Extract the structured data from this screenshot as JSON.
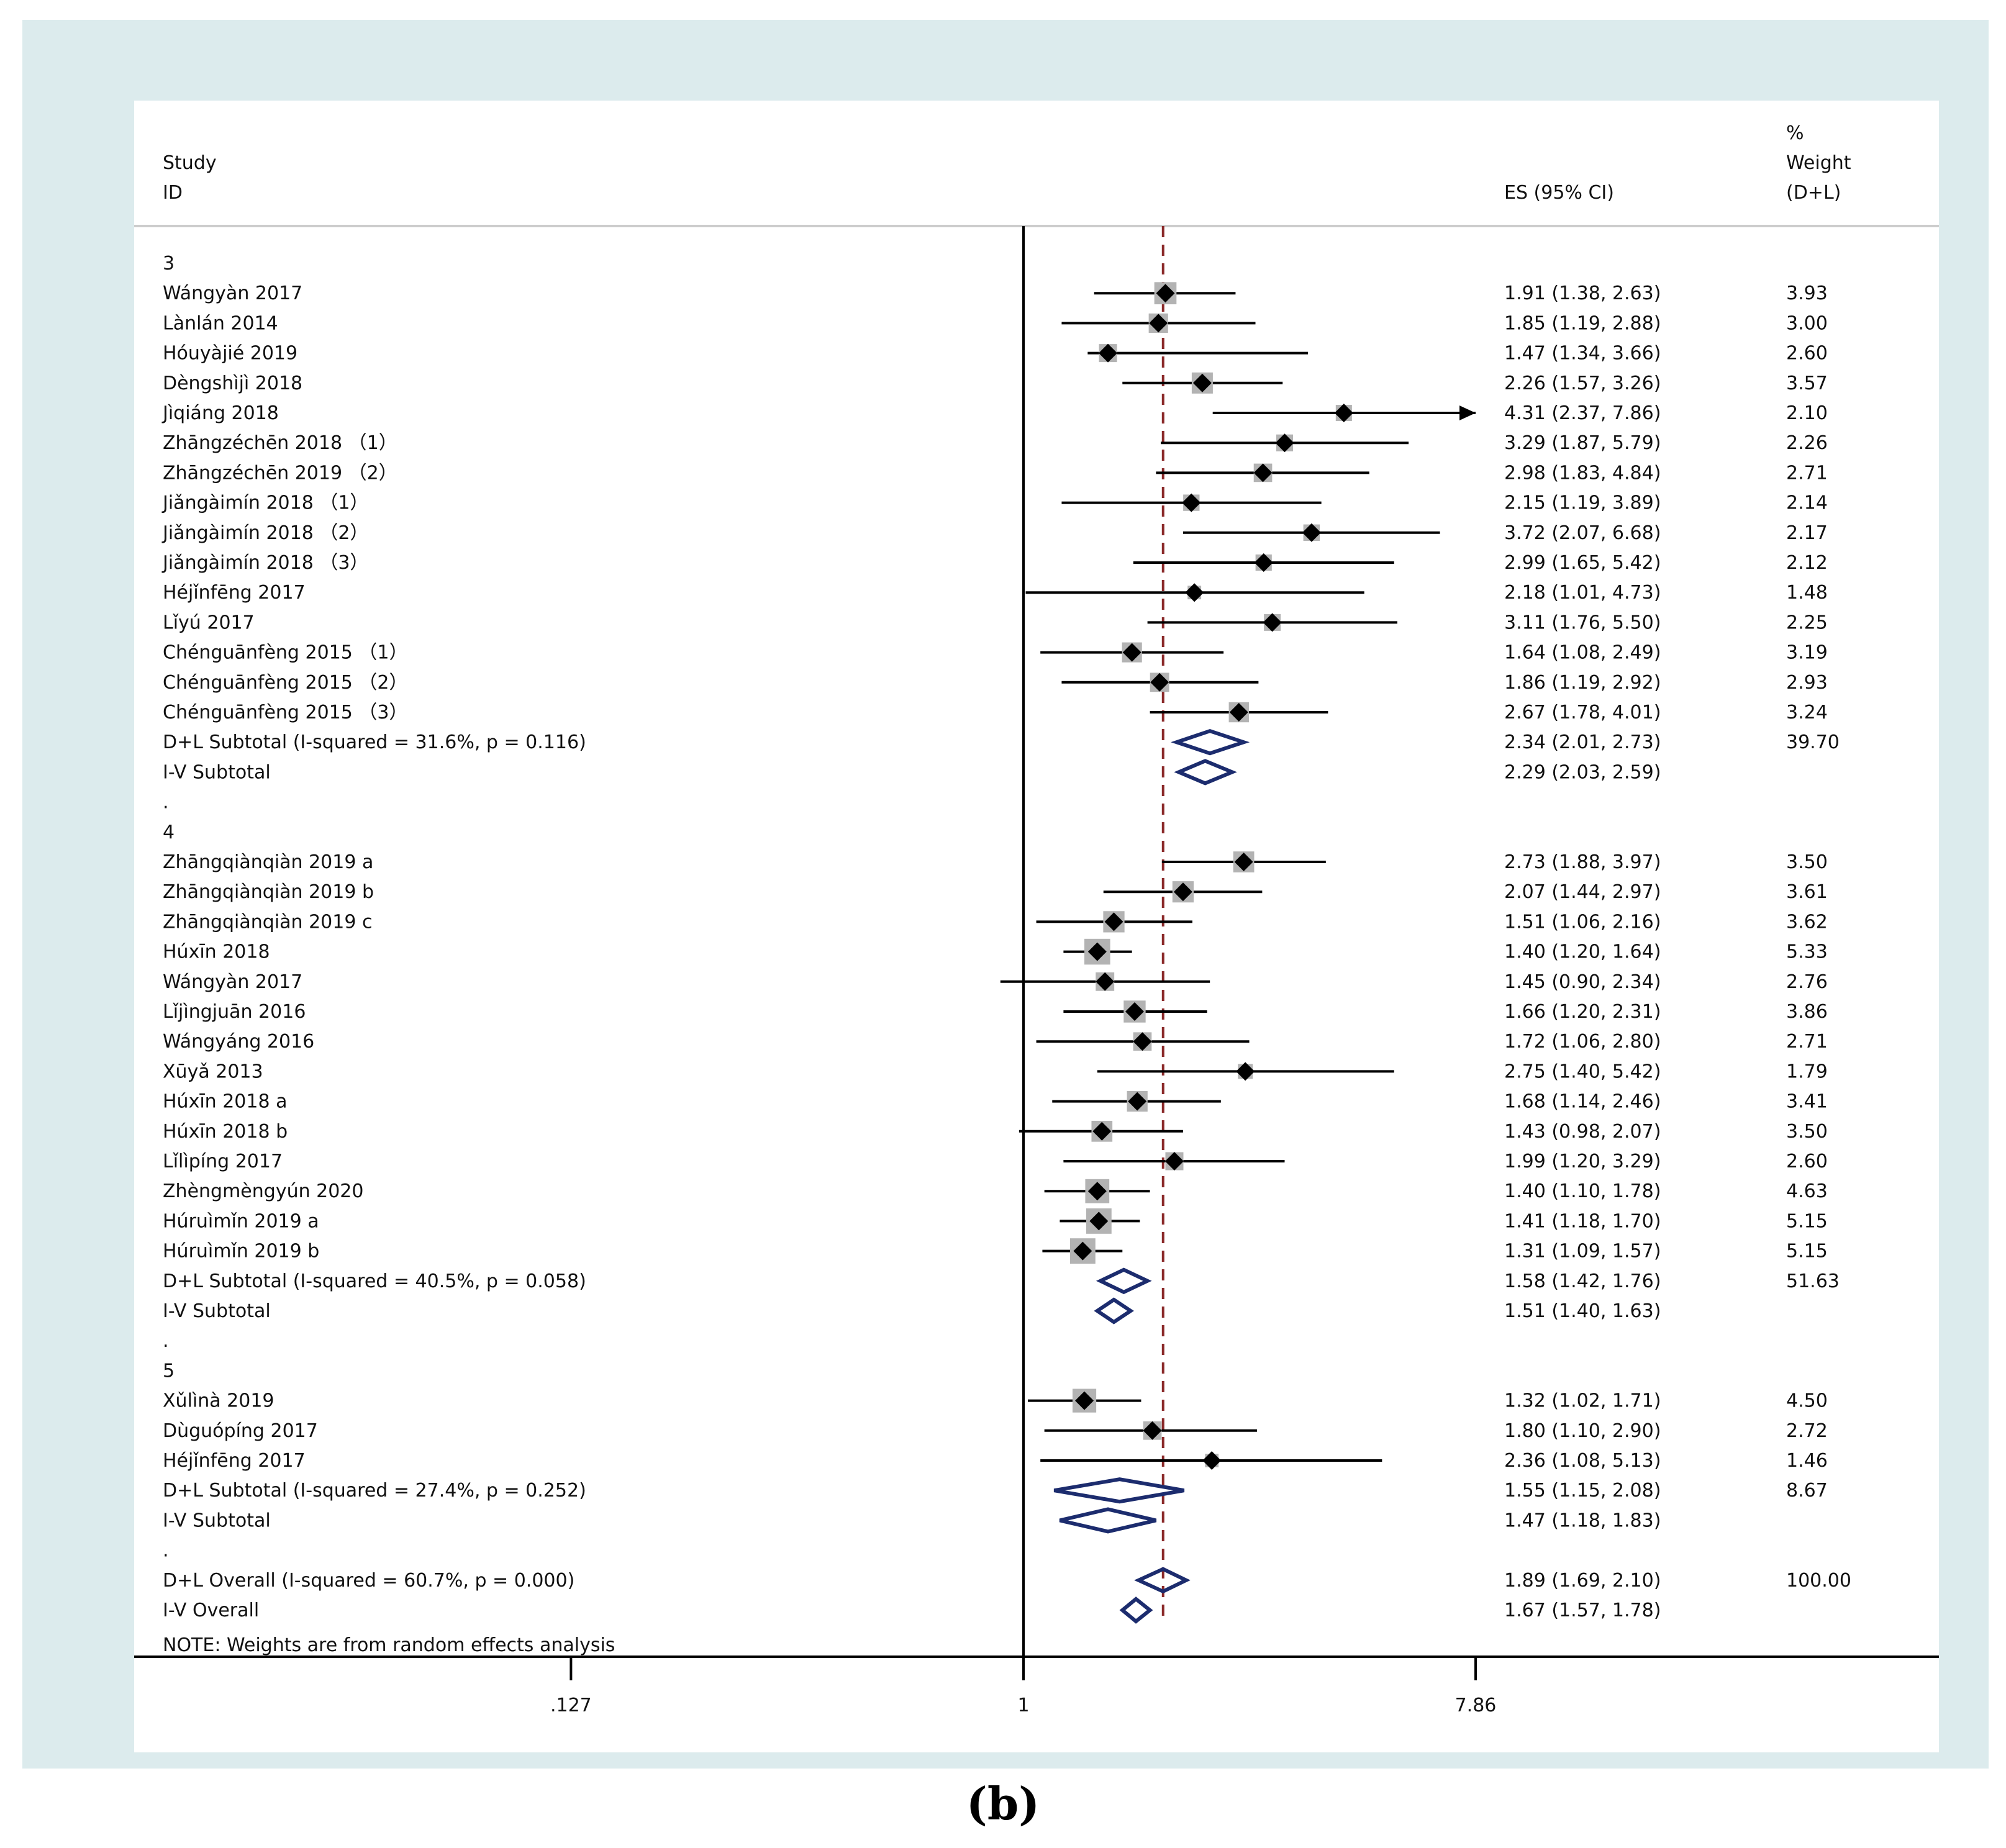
{
  "chart_data": {
    "type": "forest",
    "title": "",
    "headers": {
      "study": "Study",
      "id": "ID",
      "es": "ES (95% CI)",
      "weight_pct": "%",
      "weight": "Weight",
      "weight_method": "(D+L)"
    },
    "xaxis": {
      "scale": "log",
      "ticks": [
        0.127,
        1,
        7.86
      ],
      "tick_labels": [
        ".127",
        "1",
        "7.86"
      ],
      "null_value": 1,
      "overall_dashed_line": 1.89
    },
    "rows": [
      {
        "kind": "group",
        "label": "3"
      },
      {
        "kind": "study",
        "label": "Wángyàn 2017",
        "es": 1.91,
        "lo": 1.38,
        "hi": 2.63,
        "text": "1.91 (1.38, 2.63)",
        "weight": "3.93"
      },
      {
        "kind": "study",
        "label": "Lànlán 2014",
        "es": 1.85,
        "lo": 1.19,
        "hi": 2.88,
        "text": "1.85 (1.19, 2.88)",
        "weight": "3.00"
      },
      {
        "kind": "study",
        "label": "Hóuyàjié 2019",
        "es": 1.47,
        "lo": 1.34,
        "hi": 3.66,
        "text": "1.47 (1.34, 3.66)",
        "weight": "2.60"
      },
      {
        "kind": "study",
        "label": "Dèngshìjì 2018",
        "es": 2.26,
        "lo": 1.57,
        "hi": 3.26,
        "text": "2.26 (1.57, 3.26)",
        "weight": "3.57"
      },
      {
        "kind": "study",
        "label": "Jìqiáng 2018",
        "es": 4.31,
        "lo": 2.37,
        "hi": 7.86,
        "arrow": true,
        "text": "4.31 (2.37, 7.86)",
        "weight": "2.10"
      },
      {
        "kind": "study",
        "label": "Zhāngzéchēn 2018 （1）",
        "es": 3.29,
        "lo": 1.87,
        "hi": 5.79,
        "text": "3.29 (1.87, 5.79)",
        "weight": "2.26"
      },
      {
        "kind": "study",
        "label": "Zhāngzéchēn 2019 （2）",
        "es": 2.98,
        "lo": 1.83,
        "hi": 4.84,
        "text": "2.98 (1.83, 4.84)",
        "weight": "2.71"
      },
      {
        "kind": "study",
        "label": "Jiǎngàimín 2018 （1）",
        "es": 2.15,
        "lo": 1.19,
        "hi": 3.89,
        "text": "2.15 (1.19, 3.89)",
        "weight": "2.14"
      },
      {
        "kind": "study",
        "label": "Jiǎngàimín 2018 （2）",
        "es": 3.72,
        "lo": 2.07,
        "hi": 6.68,
        "text": "3.72 (2.07, 6.68)",
        "weight": "2.17"
      },
      {
        "kind": "study",
        "label": "Jiǎngàimín 2018 （3）",
        "es": 2.99,
        "lo": 1.65,
        "hi": 5.42,
        "text": "2.99 (1.65, 5.42)",
        "weight": "2.12"
      },
      {
        "kind": "study",
        "label": "Héjǐnfēng 2017",
        "es": 2.18,
        "lo": 1.01,
        "hi": 4.73,
        "text": "2.18 (1.01, 4.73)",
        "weight": "1.48"
      },
      {
        "kind": "study",
        "label": "Lǐyú 2017",
        "es": 3.11,
        "lo": 1.76,
        "hi": 5.5,
        "text": "3.11 (1.76, 5.50)",
        "weight": "2.25"
      },
      {
        "kind": "study",
        "label": "Chénguānfèng 2015 （1）",
        "es": 1.64,
        "lo": 1.08,
        "hi": 2.49,
        "text": "1.64 (1.08, 2.49)",
        "weight": "3.19"
      },
      {
        "kind": "study",
        "label": "Chénguānfèng 2015 （2）",
        "es": 1.86,
        "lo": 1.19,
        "hi": 2.92,
        "text": "1.86 (1.19, 2.92)",
        "weight": "2.93"
      },
      {
        "kind": "study",
        "label": "Chénguānfèng 2015 （3）",
        "es": 2.67,
        "lo": 1.78,
        "hi": 4.01,
        "text": "2.67 (1.78, 4.01)",
        "weight": "3.24"
      },
      {
        "kind": "subtotal-dl",
        "label": "D+L Subtotal  (I-squared = 31.6%, p = 0.116)",
        "es": 2.34,
        "lo": 2.01,
        "hi": 2.73,
        "text": "2.34 (2.01, 2.73)",
        "weight": "39.70"
      },
      {
        "kind": "subtotal-iv",
        "label": "I-V Subtotal",
        "es": 2.29,
        "lo": 2.03,
        "hi": 2.59,
        "text": "2.29 (2.03, 2.59)",
        "weight": ""
      },
      {
        "kind": "dot",
        "label": "."
      },
      {
        "kind": "group",
        "label": "4"
      },
      {
        "kind": "study",
        "label": "Zhāngqiànqiàn 2019 a",
        "es": 2.73,
        "lo": 1.88,
        "hi": 3.97,
        "text": "2.73 (1.88, 3.97)",
        "weight": "3.50"
      },
      {
        "kind": "study",
        "label": "Zhāngqiànqiàn 2019 b",
        "es": 2.07,
        "lo": 1.44,
        "hi": 2.97,
        "text": "2.07 (1.44, 2.97)",
        "weight": "3.61"
      },
      {
        "kind": "study",
        "label": "Zhāngqiànqiàn 2019 c",
        "es": 1.51,
        "lo": 1.06,
        "hi": 2.16,
        "text": "1.51 (1.06, 2.16)",
        "weight": "3.62"
      },
      {
        "kind": "study",
        "label": "Húxīn 2018",
        "es": 1.4,
        "lo": 1.2,
        "hi": 1.64,
        "text": "1.40 (1.20, 1.64)",
        "weight": "5.33"
      },
      {
        "kind": "study",
        "label": "Wángyàn 2017",
        "es": 1.45,
        "lo": 0.9,
        "hi": 2.34,
        "text": "1.45 (0.90, 2.34)",
        "weight": "2.76"
      },
      {
        "kind": "study",
        "label": "Lǐjìngjuān 2016",
        "es": 1.66,
        "lo": 1.2,
        "hi": 2.31,
        "text": "1.66 (1.20, 2.31)",
        "weight": "3.86"
      },
      {
        "kind": "study",
        "label": "Wángyáng 2016",
        "es": 1.72,
        "lo": 1.06,
        "hi": 2.8,
        "text": "1.72 (1.06, 2.80)",
        "weight": "2.71"
      },
      {
        "kind": "study",
        "label": "Xūyǎ 2013",
        "es": 2.75,
        "lo": 1.4,
        "hi": 5.42,
        "text": "2.75 (1.40, 5.42)",
        "weight": "1.79"
      },
      {
        "kind": "study",
        "label": "Húxīn 2018 a",
        "es": 1.68,
        "lo": 1.14,
        "hi": 2.46,
        "text": "1.68 (1.14, 2.46)",
        "weight": "3.41"
      },
      {
        "kind": "study",
        "label": "Húxīn 2018 b",
        "es": 1.43,
        "lo": 0.98,
        "hi": 2.07,
        "text": "1.43 (0.98, 2.07)",
        "weight": "3.50"
      },
      {
        "kind": "study",
        "label": "Lǐlìpíng 2017",
        "es": 1.99,
        "lo": 1.2,
        "hi": 3.29,
        "text": "1.99 (1.20, 3.29)",
        "weight": "2.60"
      },
      {
        "kind": "study",
        "label": "Zhèngmèngyún 2020",
        "es": 1.4,
        "lo": 1.1,
        "hi": 1.78,
        "text": "1.40 (1.10, 1.78)",
        "weight": "4.63"
      },
      {
        "kind": "study",
        "label": "Húruìmǐn 2019 a",
        "es": 1.41,
        "lo": 1.18,
        "hi": 1.7,
        "text": "1.41 (1.18, 1.70)",
        "weight": "5.15"
      },
      {
        "kind": "study",
        "label": "Húruìmǐn 2019 b",
        "es": 1.31,
        "lo": 1.09,
        "hi": 1.57,
        "text": "1.31 (1.09, 1.57)",
        "weight": "5.15"
      },
      {
        "kind": "subtotal-dl",
        "label": "D+L Subtotal  (I-squared = 40.5%, p = 0.058)",
        "es": 1.58,
        "lo": 1.42,
        "hi": 1.76,
        "text": "1.58 (1.42, 1.76)",
        "weight": "51.63"
      },
      {
        "kind": "subtotal-iv",
        "label": "I-V Subtotal",
        "es": 1.51,
        "lo": 1.4,
        "hi": 1.63,
        "text": "1.51 (1.40, 1.63)",
        "weight": ""
      },
      {
        "kind": "dot",
        "label": "."
      },
      {
        "kind": "group",
        "label": "5"
      },
      {
        "kind": "study",
        "label": "Xǔlìnà 2019",
        "es": 1.32,
        "lo": 1.02,
        "hi": 1.71,
        "text": "1.32 (1.02, 1.71)",
        "weight": "4.50"
      },
      {
        "kind": "study",
        "label": "Dùguópíng 2017",
        "es": 1.8,
        "lo": 1.1,
        "hi": 2.9,
        "text": "1.80 (1.10, 2.90)",
        "weight": "2.72"
      },
      {
        "kind": "study",
        "label": "Héjǐnfēng 2017",
        "es": 2.36,
        "lo": 1.08,
        "hi": 5.13,
        "text": "2.36 (1.08, 5.13)",
        "weight": "1.46"
      },
      {
        "kind": "subtotal-dl",
        "label": "D+L Subtotal  (I-squared = 27.4%, p = 0.252)",
        "es": 1.55,
        "lo": 1.15,
        "hi": 2.08,
        "text": "1.55 (1.15, 2.08)",
        "weight": "8.67"
      },
      {
        "kind": "subtotal-iv",
        "label": "I-V Subtotal",
        "es": 1.47,
        "lo": 1.18,
        "hi": 1.83,
        "text": "1.47 (1.18, 1.83)",
        "weight": ""
      },
      {
        "kind": "dot",
        "label": "."
      },
      {
        "kind": "overall-dl",
        "label": "D+L Overall  (I-squared = 60.7%, p = 0.000)",
        "es": 1.89,
        "lo": 1.69,
        "hi": 2.1,
        "text": "1.89 (1.69, 2.10)",
        "weight": "100.00"
      },
      {
        "kind": "overall-iv",
        "label": "I-V Overall",
        "es": 1.67,
        "lo": 1.57,
        "hi": 1.78,
        "text": "1.67 (1.57, 1.78)",
        "weight": ""
      }
    ],
    "note": "NOTE: Weights are from random effects analysis"
  },
  "panel_label": "(b)",
  "colors": {
    "background_frame": "#dcebed",
    "diamond": "#1c2c6e",
    "weight_box": "#b3b3b3",
    "dashed_line": "#8b2a2a"
  }
}
